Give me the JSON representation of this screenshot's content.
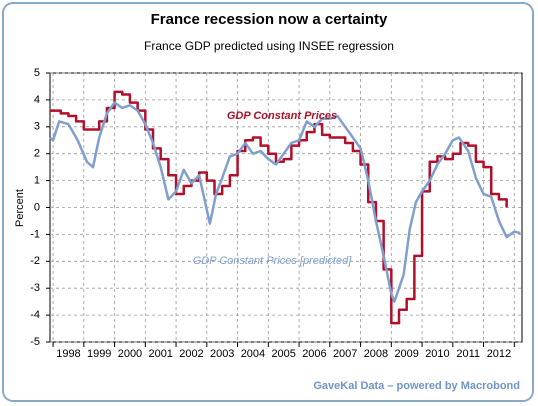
{
  "chart_data": {
    "type": "line",
    "title": "France recession now a certainty",
    "subtitle": "France GDP predicted using INSEE regression",
    "ylabel": "Percent",
    "source": "GaveKal Data – powered by Macrobond",
    "xlim": [
      1997.9,
      2013.25
    ],
    "ylim": [
      -5,
      5
    ],
    "yticks": [
      -5,
      -4,
      -3,
      -2,
      -1,
      0,
      1,
      2,
      3,
      4,
      5
    ],
    "xticks": [
      {
        "value": 1998.5,
        "label": "1998"
      },
      {
        "value": 1999.5,
        "label": "1999"
      },
      {
        "value": 2000.5,
        "label": "2000"
      },
      {
        "value": 2001.5,
        "label": "2001"
      },
      {
        "value": 2002.5,
        "label": "2002"
      },
      {
        "value": 2003.5,
        "label": "2003"
      },
      {
        "value": 2004.5,
        "label": "2004"
      },
      {
        "value": 2005.5,
        "label": "2005"
      },
      {
        "value": 2006.5,
        "label": "2006"
      },
      {
        "value": 2007.5,
        "label": "2007"
      },
      {
        "value": 2008.5,
        "label": "2008"
      },
      {
        "value": 2009.5,
        "label": "2009"
      },
      {
        "value": 2010.5,
        "label": "2010"
      },
      {
        "value": 2011.5,
        "label": "2011"
      },
      {
        "value": 2012.5,
        "label": "2012"
      }
    ],
    "xgrid": [
      1998,
      1999,
      2000,
      2001,
      2002,
      2003,
      2004,
      2005,
      2006,
      2007,
      2008,
      2009,
      2010,
      2011,
      2012,
      2013
    ],
    "grid": true,
    "series": [
      {
        "name": "GDP Constant Prices",
        "color": "#b0102a",
        "step": true,
        "x": [
          1997.9,
          1998.25,
          1998.5,
          1998.75,
          1999.0,
          1999.25,
          1999.5,
          1999.75,
          2000.0,
          2000.25,
          2000.5,
          2000.75,
          2001.0,
          2001.25,
          2001.5,
          2001.75,
          2002.0,
          2002.25,
          2002.5,
          2002.75,
          2003.0,
          2003.25,
          2003.5,
          2003.75,
          2004.0,
          2004.25,
          2004.5,
          2004.75,
          2005.0,
          2005.25,
          2005.5,
          2005.75,
          2006.0,
          2006.25,
          2006.5,
          2006.75,
          2007.0,
          2007.25,
          2007.5,
          2007.75,
          2008.0,
          2008.25,
          2008.5,
          2008.75,
          2009.0,
          2009.25,
          2009.5,
          2009.75,
          2010.0,
          2010.25,
          2010.5,
          2010.75,
          2011.0,
          2011.25,
          2011.5,
          2011.75,
          2012.0,
          2012.25,
          2012.5,
          2012.75
        ],
        "values": [
          3.6,
          3.5,
          3.4,
          3.2,
          2.9,
          2.9,
          3.2,
          3.7,
          4.3,
          4.2,
          3.9,
          3.6,
          2.9,
          2.2,
          1.8,
          1.2,
          0.5,
          0.8,
          1.0,
          1.3,
          1.0,
          0.5,
          0.8,
          1.2,
          2.1,
          2.5,
          2.6,
          2.3,
          2.0,
          1.7,
          1.8,
          2.3,
          2.5,
          2.8,
          3.1,
          2.7,
          2.6,
          2.6,
          2.4,
          2.1,
          1.6,
          0.2,
          -0.5,
          -2.3,
          -4.3,
          -3.8,
          -3.4,
          -1.8,
          0.6,
          1.7,
          1.9,
          1.8,
          2.0,
          2.4,
          2.3,
          1.7,
          1.5,
          0.5,
          0.3,
          0.0
        ]
      },
      {
        "name": "GDP Constant Prices [predicted]",
        "color": "#7f9fcf",
        "step": false,
        "x": [
          1997.9,
          1998.0,
          1998.2,
          1998.5,
          1998.8,
          1999.1,
          1999.3,
          1999.5,
          1999.75,
          2000.0,
          2000.25,
          2000.5,
          2000.75,
          2001.0,
          2001.25,
          2001.5,
          2001.75,
          2002.0,
          2002.25,
          2002.5,
          2002.75,
          2003.1,
          2003.3,
          2003.5,
          2003.75,
          2004.0,
          2004.25,
          2004.5,
          2004.75,
          2005.0,
          2005.25,
          2005.5,
          2005.75,
          2006.0,
          2006.25,
          2006.5,
          2006.75,
          2007.0,
          2007.25,
          2007.5,
          2007.75,
          2008.0,
          2008.25,
          2008.5,
          2008.75,
          2009.0,
          2009.1,
          2009.4,
          2009.6,
          2009.8,
          2010.0,
          2010.25,
          2010.5,
          2010.75,
          2011.0,
          2011.2,
          2011.5,
          2011.75,
          2012.0,
          2012.25,
          2012.5,
          2012.75,
          2013.0,
          2013.2
        ],
        "values": [
          2.6,
          2.5,
          3.2,
          3.1,
          2.5,
          1.7,
          1.5,
          2.6,
          3.5,
          3.9,
          3.7,
          3.8,
          3.6,
          3.1,
          2.4,
          1.5,
          0.3,
          0.6,
          1.4,
          0.9,
          1.2,
          -0.6,
          0.5,
          1.1,
          1.9,
          2.0,
          2.4,
          2.0,
          2.1,
          1.8,
          1.6,
          2.0,
          2.4,
          2.5,
          3.2,
          3.0,
          3.3,
          3.3,
          3.4,
          3.0,
          2.6,
          2.2,
          1.0,
          -0.5,
          -1.8,
          -3.2,
          -3.5,
          -2.5,
          -0.8,
          0.2,
          0.6,
          1.0,
          1.6,
          2.0,
          2.5,
          2.6,
          2.1,
          1.1,
          0.5,
          0.4,
          -0.5,
          -1.1,
          -0.9,
          -0.95
        ]
      }
    ]
  }
}
